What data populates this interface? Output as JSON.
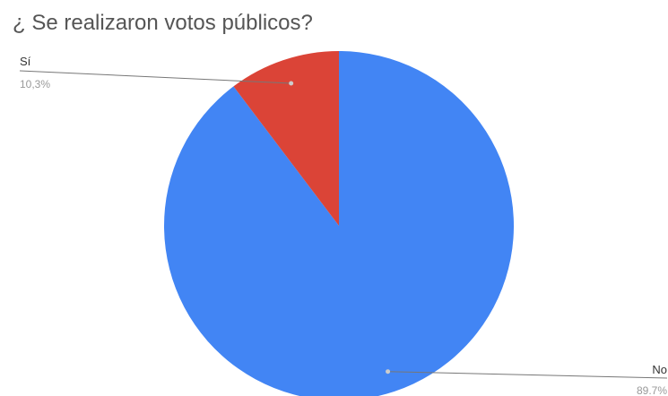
{
  "chart_data": {
    "type": "pie",
    "title": "¿ Se realizaron votos públicos?",
    "slices": [
      {
        "label": "No",
        "percent_label": "89.7%",
        "value": 89.7,
        "color": "#4285f4"
      },
      {
        "label": "Sí",
        "percent_label": "10,3%",
        "value": 10.3,
        "color": "#db4437"
      }
    ],
    "legend": "none"
  }
}
